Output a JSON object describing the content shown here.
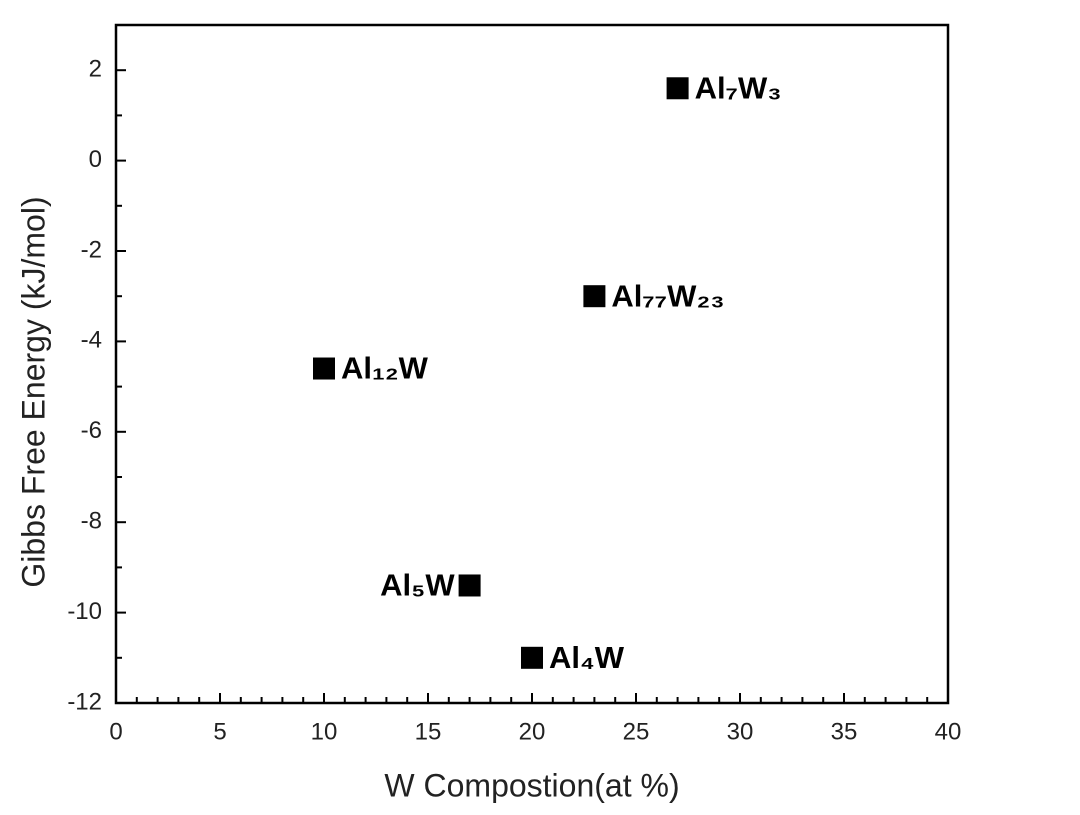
{
  "chart_data": {
    "type": "scatter",
    "x_label": "W Compostion(at %)",
    "y_label": "Gibbs Free Energy (kJ/mol)",
    "x": [
      10,
      17,
      20,
      23,
      27
    ],
    "values": [
      -4.6,
      -9.4,
      -11,
      -3,
      1.6
    ],
    "point_labels": [
      "Al₁₂W",
      "Al₅W",
      "Al₄W",
      "Al₇₇W₂₃",
      "Al₇W₃"
    ],
    "label_position": [
      "right",
      "left",
      "right",
      "right",
      "right"
    ],
    "color": "#000000",
    "marker": "square",
    "xlim": [
      0,
      40
    ],
    "xticks": [
      0,
      5,
      10,
      15,
      20,
      25,
      30,
      35,
      40
    ],
    "x_minor_ticks": [
      1,
      2,
      3,
      4,
      6,
      7,
      8,
      9,
      11,
      12,
      13,
      14,
      16,
      17,
      18,
      19,
      21,
      22,
      23,
      24,
      26,
      27,
      28,
      29,
      31,
      32,
      33,
      34,
      36,
      37,
      38,
      39
    ],
    "ylim": [
      -12,
      3
    ],
    "yticks": [
      -12,
      -10,
      -8,
      -6,
      -4,
      -2,
      0,
      2
    ],
    "y_minor_ticks": [
      -11,
      -9,
      -7,
      -5,
      -3,
      -1,
      1
    ],
    "grid": false
  }
}
